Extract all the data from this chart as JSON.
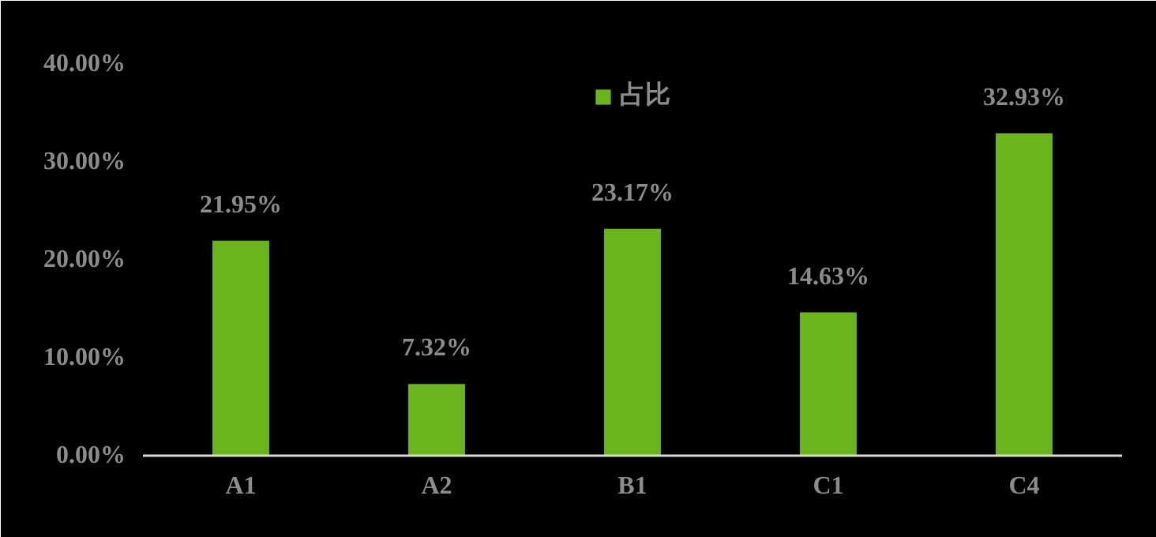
{
  "chart_data": {
    "type": "bar",
    "categories": [
      "A1",
      "A2",
      "B1",
      "C1",
      "C4"
    ],
    "series": [
      {
        "name": "占比",
        "color": "#6ab41e",
        "values": [
          21.95,
          7.32,
          23.17,
          14.63,
          32.93
        ]
      }
    ],
    "value_labels": [
      "21.95%",
      "7.32%",
      "23.17%",
      "14.63%",
      "32.93%"
    ],
    "ylim": [
      0,
      40
    ],
    "yticks": [
      {
        "value": 0,
        "label": "0.00%"
      },
      {
        "value": 10,
        "label": "10.00%"
      },
      {
        "value": 20,
        "label": "20.00%"
      },
      {
        "value": 30,
        "label": "30.00%"
      },
      {
        "value": 40,
        "label": "40.00%"
      }
    ],
    "grid": false,
    "legend": "top"
  }
}
